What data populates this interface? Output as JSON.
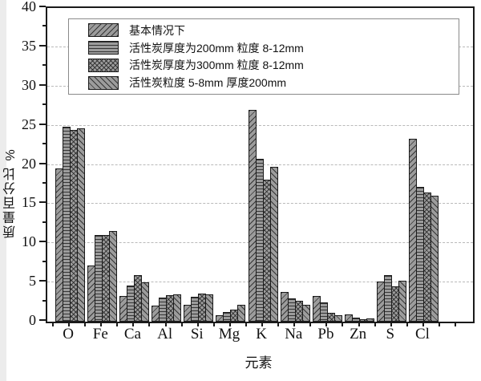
{
  "figure": {
    "background": "#ffffff",
    "edge_band_color": "#ececec"
  },
  "legend": {
    "items": [
      {
        "label": "基本情况下",
        "pattern": "diagonal-forward-hatch"
      },
      {
        "label": "活性炭厚度为200mm 粒度 8-12mm",
        "pattern": "horizontal-lines"
      },
      {
        "label": "活性炭厚度为300mm 粒度 8-12mm",
        "pattern": "crosshatch"
      },
      {
        "label": "活性炭粒度 5-8mm 厚度200mm",
        "pattern": "diagonal-back-hatch"
      }
    ]
  },
  "chart_data": {
    "type": "bar",
    "title": "",
    "xlabel": "元素",
    "ylabel": "质量百分比  %",
    "ylim": [
      0,
      40
    ],
    "yticks": [
      0,
      5,
      10,
      15,
      20,
      25,
      30,
      35,
      40
    ],
    "ytick_minor_step": 2.5,
    "grid": "horizontal dashed at major ticks",
    "legend_position": "top-left inside plot",
    "categories": [
      "O",
      "Fe",
      "Ca",
      "Al",
      "Si",
      "Mg",
      "K",
      "Na",
      "Pb",
      "Zn",
      "S",
      "Cl"
    ],
    "series": [
      {
        "name": "基本情况下",
        "hatch": "/",
        "values": [
          19.5,
          7.2,
          3.3,
          2.0,
          2.1,
          0.8,
          27.0,
          3.8,
          3.3,
          0.9,
          5.1,
          23.3
        ]
      },
      {
        "name": "活性炭厚度为200mm 粒度 8-12mm",
        "hatch": "-",
        "values": [
          24.9,
          11.0,
          4.6,
          3.1,
          3.2,
          1.2,
          20.8,
          3.0,
          2.5,
          0.5,
          5.9,
          17.2
        ]
      },
      {
        "name": "活性炭厚度为300mm 粒度 8-12mm",
        "hatch": "x",
        "values": [
          24.5,
          11.0,
          5.9,
          3.4,
          3.6,
          1.5,
          18.1,
          2.7,
          1.1,
          0.3,
          4.5,
          16.5
        ]
      },
      {
        "name": "活性炭粒度 5-8mm 厚度200mm",
        "hatch": "\\",
        "values": [
          24.7,
          11.6,
          5.0,
          3.5,
          3.5,
          2.2,
          19.7,
          2.2,
          0.8,
          0.4,
          5.2,
          16.1
        ]
      }
    ],
    "colors": {
      "bar_fill": "#9c9c9c",
      "hatch": "#2a2a2a",
      "bar_border": "#1b1b1b",
      "axis": "#1a1a1a",
      "gridline": "#b9b9b9"
    }
  }
}
